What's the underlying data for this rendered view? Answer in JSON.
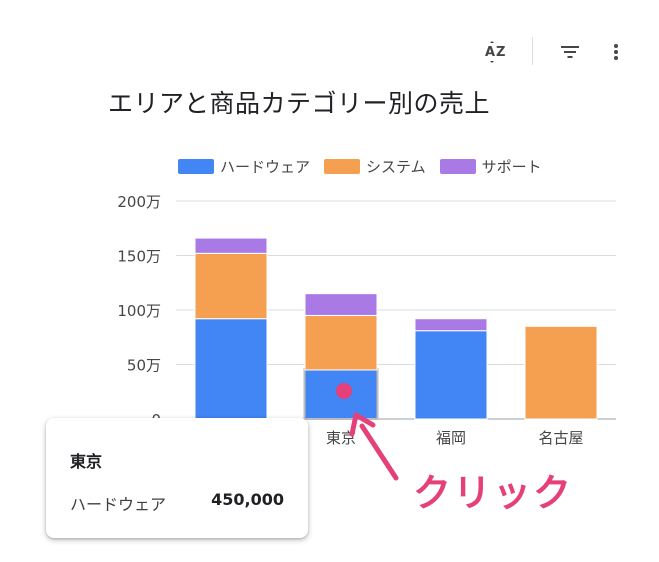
{
  "toolbar": {
    "sort_icon": "sort-az-icon",
    "filter_icon": "filter-icon",
    "more_icon": "more-vert-icon"
  },
  "chart_data": {
    "type": "bar",
    "stacked": true,
    "title": "エリアと商品カテゴリー別の売上",
    "categories": [
      "",
      "東京",
      "福岡",
      "名古屋"
    ],
    "series": [
      {
        "name": "ハードウェア",
        "color": "#4285f4",
        "values": [
          920000,
          450000,
          810000,
          0
        ]
      },
      {
        "name": "システム",
        "color": "#f4a050",
        "values": [
          600000,
          500000,
          0,
          850000
        ]
      },
      {
        "name": "サポート",
        "color": "#a97ae6",
        "values": [
          140000,
          200000,
          110000,
          0
        ]
      }
    ],
    "ylim": [
      0,
      2000000
    ],
    "yticks": [
      0,
      500000,
      1000000,
      1500000,
      2000000
    ],
    "ytick_labels": [
      "0",
      "50万",
      "100万",
      "150万",
      "200万"
    ],
    "legend_position": "top",
    "grid": true,
    "highlight": {
      "category": "東京",
      "series": "ハードウェア"
    }
  },
  "tooltip": {
    "title": "東京",
    "label": "ハードウェア",
    "value": "450,000"
  },
  "annotation": {
    "text": "クリック",
    "color": "#e5407a"
  }
}
